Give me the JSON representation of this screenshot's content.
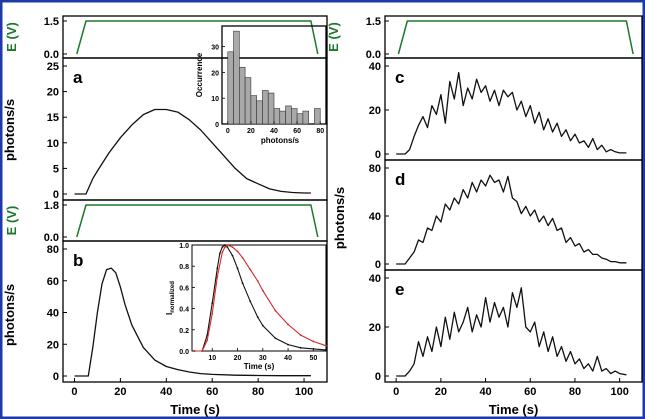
{
  "frame_color": "#1e3aa8",
  "voltage_color": "#1a7a2a",
  "trace_color": "#111111",
  "red_color": "#d42a2a",
  "bar_color": "#a9a9a9",
  "chart_data": [
    {
      "id": "a",
      "type": "line",
      "panel_label": "a",
      "ylabel": "photons/s",
      "xlim": [
        -5,
        110
      ],
      "ylim": [
        0,
        25
      ],
      "yticks": [
        0,
        5,
        10,
        15,
        20,
        25
      ],
      "xticks": [],
      "series": [
        {
          "x": [
            0,
            5,
            8,
            10,
            15,
            20,
            25,
            30,
            35,
            40,
            45,
            50,
            55,
            60,
            65,
            70,
            75,
            80,
            85,
            90,
            95,
            100,
            103
          ],
          "y": [
            0,
            0,
            3,
            4.5,
            8,
            11,
            13.5,
            15.5,
            16.5,
            16.5,
            16,
            14.5,
            12.5,
            10,
            7.5,
            5,
            3,
            2,
            1,
            0.5,
            0.3,
            0.2,
            0.2
          ]
        }
      ],
      "voltage": {
        "ylabel": "E (V)",
        "yticks": [
          "0.0",
          "1.5"
        ],
        "ylim": [
          0,
          1.5
        ],
        "x": [
          1,
          5,
          103,
          106
        ],
        "y": [
          0,
          1.5,
          1.5,
          0
        ]
      }
    },
    {
      "id": "a-inset",
      "type": "bar",
      "ylabel": "Occurrence",
      "xlabel": "photons/s",
      "xlim": [
        -5,
        85
      ],
      "ylim": [
        0,
        38
      ],
      "xticks": [
        0,
        20,
        40,
        60,
        80
      ],
      "yticks": [
        0,
        10,
        20,
        30
      ],
      "bin_width": 5,
      "x": [
        2.5,
        7.5,
        12.5,
        17.5,
        22.5,
        27.5,
        32.5,
        37.5,
        42.5,
        47.5,
        52.5,
        57.5,
        62.5,
        67.5,
        72.5,
        77.5
      ],
      "values": [
        28,
        36,
        22,
        18,
        11,
        9,
        13,
        12,
        6,
        5,
        7,
        6,
        4,
        5,
        0,
        6
      ]
    },
    {
      "id": "b",
      "type": "line",
      "panel_label": "b",
      "ylabel": "photons/s",
      "xlabel": "Time (s)",
      "xlim": [
        -5,
        110
      ],
      "ylim": [
        0,
        80
      ],
      "yticks": [
        0,
        20,
        40,
        60,
        80
      ],
      "xticks": [
        0,
        20,
        40,
        60,
        80,
        100
      ],
      "series": [
        {
          "x": [
            0,
            6,
            8,
            10,
            12,
            14,
            16,
            18,
            20,
            22,
            25,
            30,
            35,
            40,
            45,
            50,
            55,
            60,
            70,
            80,
            90,
            100,
            103
          ],
          "y": [
            0,
            0,
            18,
            40,
            58,
            67,
            68,
            65,
            56,
            45,
            32,
            18,
            10,
            6,
            4,
            2.5,
            1.5,
            1,
            0.5,
            0.3,
            0.2,
            0.2,
            0.2
          ]
        }
      ],
      "voltage": {
        "ylabel": "E (V)",
        "yticks": [
          "0.0",
          "1.8"
        ],
        "ylim": [
          0,
          1.8
        ],
        "x": [
          1,
          5,
          103,
          106
        ],
        "y": [
          0,
          1.8,
          1.8,
          0
        ]
      }
    },
    {
      "id": "b-inset",
      "type": "line",
      "ylabel": "I",
      "ylabel_sub": "normalized",
      "xlabel": "Time (s)",
      "xlim": [
        2,
        55
      ],
      "ylim": [
        0,
        1.0
      ],
      "xticks": [
        10,
        20,
        30,
        40,
        50
      ],
      "yticks": [
        "0.0",
        "0.2",
        "0.4",
        "0.6",
        "0.8",
        "1.0"
      ],
      "series": [
        {
          "color": "black",
          "x": [
            3,
            6,
            8,
            10,
            12,
            13,
            14,
            15,
            16,
            18,
            20,
            22,
            25,
            28,
            30,
            35,
            40,
            45,
            50,
            55
          ],
          "y": [
            0,
            0,
            0.15,
            0.45,
            0.78,
            0.92,
            0.98,
            1.0,
            0.98,
            0.9,
            0.78,
            0.64,
            0.47,
            0.32,
            0.24,
            0.12,
            0.06,
            0.03,
            0.02,
            0.01
          ]
        },
        {
          "color": "red",
          "x": [
            3,
            6,
            8,
            10,
            12,
            14,
            15,
            16,
            18,
            20,
            22,
            25,
            28,
            30,
            35,
            40,
            45,
            50,
            55
          ],
          "y": [
            0,
            0,
            0.1,
            0.35,
            0.7,
            0.93,
            0.98,
            1.0,
            0.98,
            0.94,
            0.88,
            0.77,
            0.66,
            0.57,
            0.38,
            0.25,
            0.15,
            0.09,
            0.05
          ]
        }
      ]
    },
    {
      "id": "c",
      "type": "line",
      "panel_label": "c",
      "ylim": [
        0,
        40
      ],
      "yticks": [
        0,
        20,
        40
      ],
      "xlim": [
        -5,
        110
      ],
      "series": [
        {
          "x": [
            0,
            4,
            6,
            8,
            10,
            12,
            14,
            16,
            18,
            20,
            22,
            24,
            26,
            28,
            30,
            32,
            34,
            36,
            38,
            40,
            42,
            44,
            46,
            48,
            50,
            52,
            54,
            56,
            58,
            60,
            62,
            64,
            66,
            68,
            70,
            72,
            74,
            76,
            78,
            80,
            82,
            84,
            86,
            88,
            90,
            92,
            94,
            96,
            98,
            100,
            103
          ],
          "y": [
            0,
            0,
            2,
            8,
            13,
            17,
            12,
            22,
            18,
            27,
            14,
            33,
            25,
            37,
            22,
            30,
            25,
            34,
            28,
            31,
            24,
            29,
            22,
            29,
            26,
            28,
            20,
            24,
            17,
            22,
            14,
            19,
            11,
            16,
            10,
            14,
            8,
            11,
            6,
            9,
            5,
            6,
            3,
            7,
            2,
            4,
            1,
            2,
            1,
            0.5,
            0.5
          ]
        }
      ],
      "voltage": {
        "ylabel": "E (V)",
        "yticks": [
          "0.0",
          "1.5"
        ],
        "ylim": [
          0,
          1.5
        ],
        "x": [
          1,
          5,
          103,
          106
        ],
        "y": [
          0,
          1.5,
          1.5,
          0
        ]
      }
    },
    {
      "id": "d",
      "type": "line",
      "panel_label": "d",
      "ylabel": "photons/s",
      "ylim": [
        0,
        80
      ],
      "yticks": [
        0,
        40,
        80
      ],
      "xlim": [
        -5,
        110
      ],
      "series": [
        {
          "x": [
            0,
            4,
            6,
            8,
            10,
            12,
            14,
            16,
            18,
            20,
            22,
            24,
            26,
            28,
            30,
            32,
            34,
            36,
            38,
            40,
            42,
            44,
            46,
            48,
            50,
            52,
            54,
            56,
            58,
            60,
            62,
            64,
            66,
            68,
            70,
            72,
            74,
            76,
            78,
            80,
            82,
            84,
            86,
            88,
            90,
            92,
            94,
            96,
            98,
            100,
            103
          ],
          "y": [
            0,
            0,
            5,
            10,
            20,
            18,
            30,
            28,
            40,
            35,
            50,
            45,
            55,
            50,
            62,
            55,
            68,
            60,
            70,
            65,
            74,
            68,
            70,
            60,
            73,
            55,
            52,
            42,
            48,
            40,
            45,
            35,
            40,
            32,
            38,
            28,
            30,
            18,
            22,
            15,
            17,
            10,
            12,
            8,
            8,
            5,
            4,
            2,
            2,
            1,
            1
          ]
        }
      ]
    },
    {
      "id": "e",
      "type": "line",
      "panel_label": "e",
      "xlabel": "Time (s)",
      "ylim": [
        0,
        40
      ],
      "yticks": [
        0,
        20,
        40
      ],
      "xticks": [
        0,
        20,
        40,
        60,
        80,
        100
      ],
      "xlim": [
        -5,
        110
      ],
      "series": [
        {
          "x": [
            0,
            4,
            6,
            8,
            10,
            12,
            14,
            16,
            18,
            20,
            22,
            24,
            26,
            28,
            30,
            32,
            34,
            36,
            38,
            40,
            42,
            44,
            46,
            48,
            50,
            52,
            54,
            56,
            58,
            60,
            62,
            64,
            66,
            68,
            70,
            72,
            74,
            76,
            78,
            80,
            82,
            84,
            86,
            88,
            90,
            92,
            94,
            96,
            98,
            100,
            103
          ],
          "y": [
            0,
            0,
            2,
            5,
            14,
            8,
            16,
            10,
            20,
            12,
            24,
            15,
            26,
            18,
            22,
            28,
            18,
            25,
            20,
            32,
            22,
            30,
            24,
            28,
            20,
            34,
            28,
            36,
            20,
            18,
            22,
            12,
            18,
            10,
            16,
            8,
            12,
            6,
            10,
            5,
            7,
            3,
            5,
            2,
            8,
            2,
            3,
            1,
            2,
            1,
            0.5
          ]
        }
      ]
    }
  ]
}
